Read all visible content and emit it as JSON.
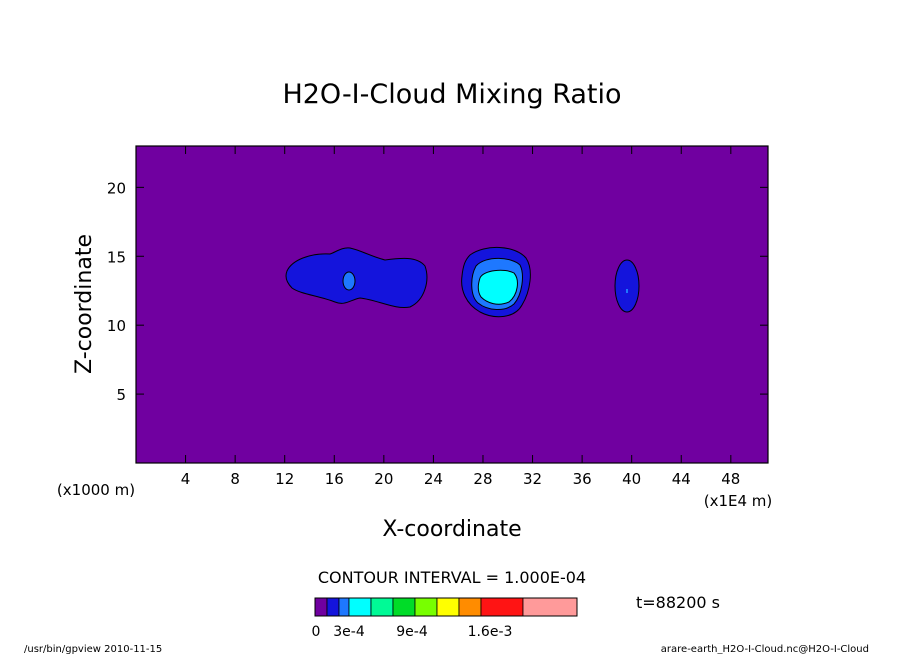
{
  "title": "H2O-I-Cloud Mixing Ratio",
  "chart_data": {
    "type": "heatmap",
    "title": "H2O-I-Cloud Mixing Ratio",
    "xlabel": "X-coordinate",
    "ylabel": "Z-coordinate",
    "x_unit_left": "(x1000 m)",
    "x_unit_right": "(x1E4 m)",
    "xlim": [
      0,
      51
    ],
    "ylim": [
      0,
      23
    ],
    "xticks": [
      4,
      8,
      12,
      16,
      20,
      24,
      28,
      32,
      36,
      40,
      44,
      48
    ],
    "yticks": [
      5,
      10,
      15,
      20
    ],
    "contour_interval_text": "CONTOUR INTERVAL = 1.000E-04",
    "time_text": "t=88200 s",
    "background_color": "#7000a0",
    "colorbar": {
      "colors": [
        "#7000a0",
        "#1414dc",
        "#1e78ff",
        "#00ffff",
        "#00fa96",
        "#00dc28",
        "#78ff00",
        "#ffff00",
        "#ff8c00",
        "#ff1414",
        "#ff9a9a"
      ],
      "labels": [
        {
          "text": "0",
          "value": 0
        },
        {
          "text": "3e-4",
          "value": 0.0003
        },
        {
          "text": "9e-4",
          "value": 0.0009
        },
        {
          "text": "1.6e-3",
          "value": 0.0016
        }
      ]
    },
    "cloud_regions": [
      {
        "level": 1,
        "x_range": [
          12,
          23
        ],
        "z_range": [
          11.7,
          15.6
        ]
      },
      {
        "level": 3,
        "x_range": [
          16.9,
          17.5
        ],
        "z_range": [
          12.6,
          13.5
        ]
      },
      {
        "level": 1,
        "x_range": [
          26.2,
          31.8
        ],
        "z_range": [
          10.3,
          15.6
        ]
      },
      {
        "level": 2,
        "x_range": [
          27,
          31
        ],
        "z_range": [
          11,
          14.7
        ]
      },
      {
        "level": 3,
        "x_range": [
          27.7,
          30.4
        ],
        "z_range": [
          11.6,
          13.8
        ]
      },
      {
        "level": 1,
        "x_range": [
          38.8,
          40.7
        ],
        "z_range": [
          10.8,
          14.8
        ]
      }
    ]
  },
  "footer": {
    "left": "/usr/bin/gpview   2010-11-15",
    "right": "arare-earth_H2O-I-Cloud.nc@H2O-I-Cloud"
  }
}
